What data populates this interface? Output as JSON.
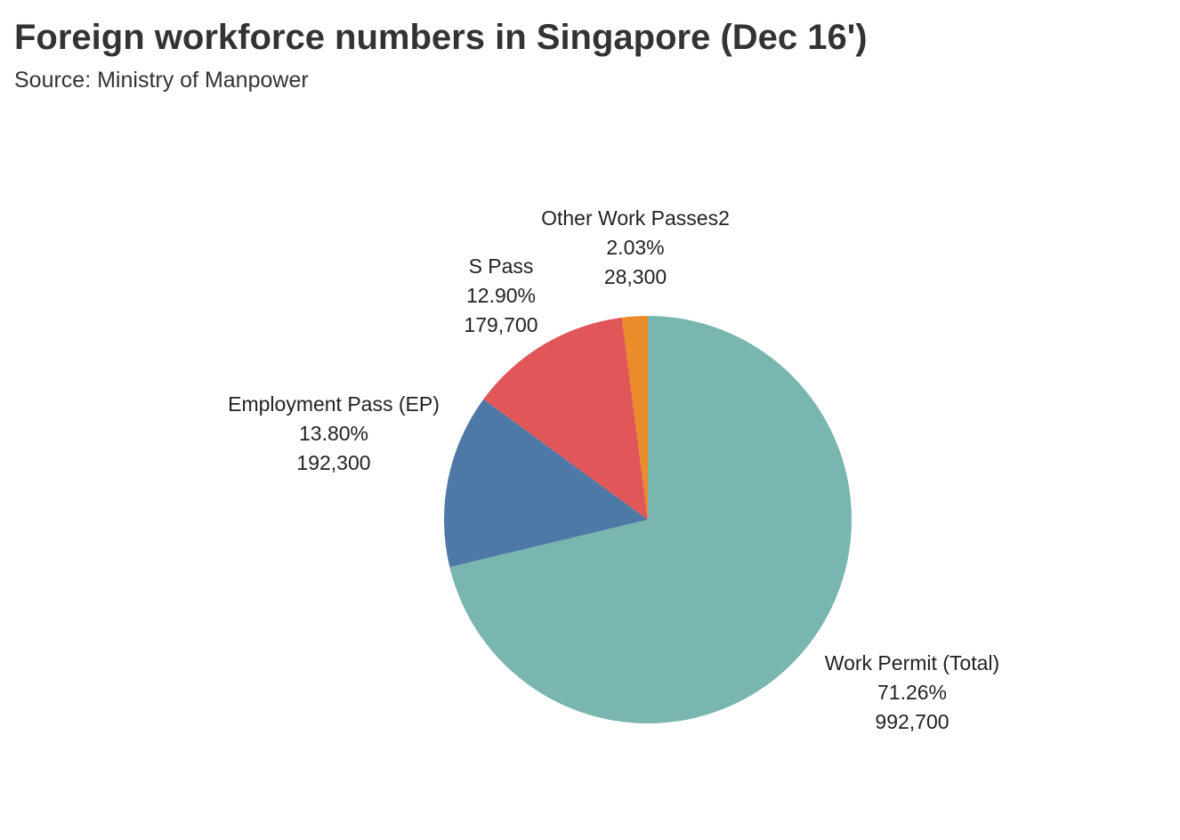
{
  "title": "Foreign workforce numbers in Singapore (Dec 16')",
  "subtitle": "Source: Ministry of Manpower",
  "chart_data": {
    "type": "pie",
    "title": "Foreign workforce numbers in Singapore (Dec 16')",
    "subtitle": "Source: Ministry of Manpower",
    "slices": [
      {
        "label": "Work Permit (Total)",
        "value": 992700,
        "percent_label": "71.26%",
        "value_label": "992,700",
        "color": "#79b6af"
      },
      {
        "label": "Employment Pass (EP)",
        "value": 192300,
        "percent_label": "13.80%",
        "value_label": "192,300",
        "color": "#4e79a7"
      },
      {
        "label": "S Pass",
        "value": 179700,
        "percent_label": "12.90%",
        "value_label": "179,700",
        "color": "#e15759"
      },
      {
        "label": "Other Work Passes2",
        "value": 28300,
        "percent_label": "2.03%",
        "value_label": "28,300",
        "color": "#ea8c2a"
      }
    ],
    "legend": "none",
    "labels_position": "outside"
  }
}
